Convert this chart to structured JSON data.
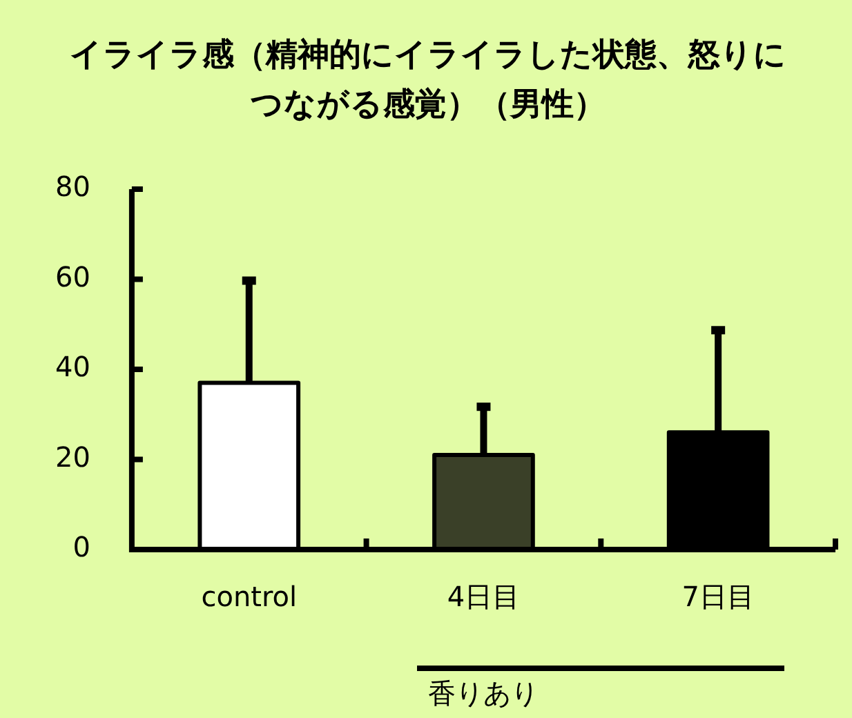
{
  "chart_data": {
    "type": "bar",
    "title": "イライラ感（精神的にイライラした状態、怒りにつながる感覚）（男性）",
    "xlabel": "香りあり",
    "categories": [
      "control",
      "4日目",
      "7日目"
    ],
    "values": [
      37,
      21,
      26
    ],
    "colors": [
      "#ffffff",
      "#3a4028",
      "#000000"
    ],
    "errors": [
      [
        37,
        60
      ],
      [
        21,
        32
      ],
      [
        26,
        49
      ]
    ],
    "ylim": [
      0,
      80
    ],
    "yticks": [
      0,
      20,
      40,
      60,
      80
    ],
    "grid": false,
    "legend": false
  }
}
